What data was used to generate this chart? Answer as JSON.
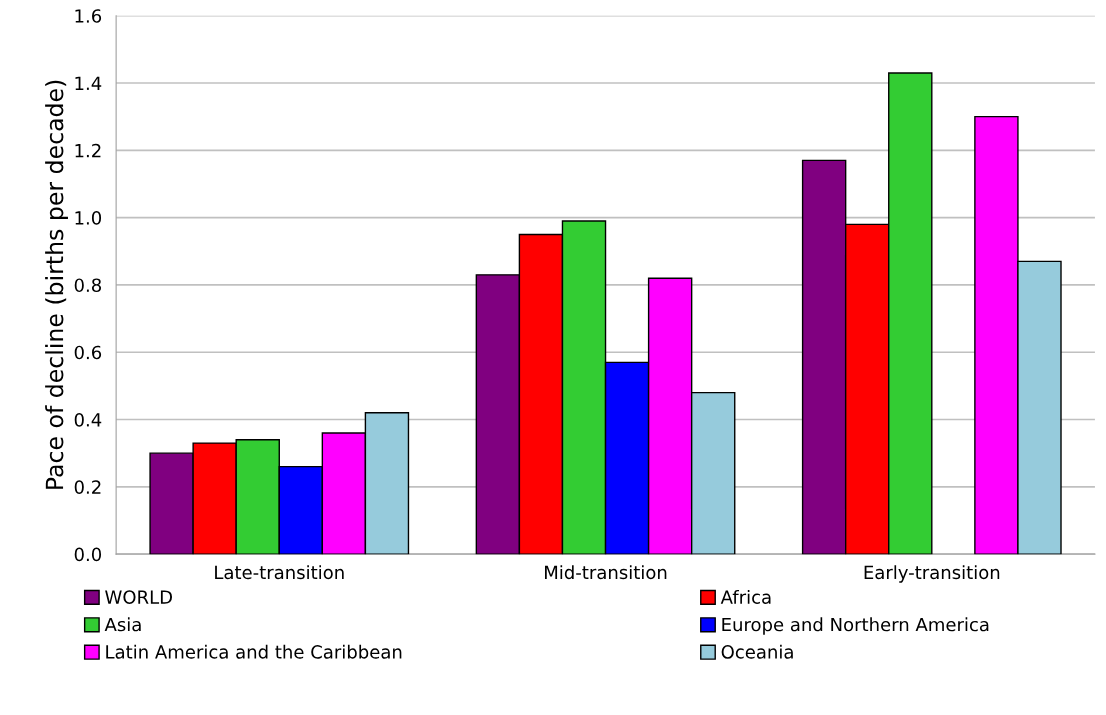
{
  "chart_data": {
    "type": "bar",
    "ylabel": "Pace of decline (births per decade)",
    "categories": [
      "Late-transition",
      "Mid-transition",
      "Early-transition"
    ],
    "series": [
      {
        "name": "WORLD",
        "color": "#800080",
        "values": [
          0.3,
          0.83,
          1.17
        ]
      },
      {
        "name": "Africa",
        "color": "#ff0000",
        "values": [
          0.33,
          0.95,
          0.98
        ]
      },
      {
        "name": "Asia",
        "color": "#33cc33",
        "values": [
          0.34,
          0.99,
          1.43
        ]
      },
      {
        "name": "Europe and Northern America",
        "color": "#0000ff",
        "values": [
          0.26,
          0.57,
          null
        ]
      },
      {
        "name": "Latin America and the Caribbean",
        "color": "#ff00ff",
        "values": [
          0.36,
          0.82,
          1.3
        ]
      },
      {
        "name": "Oceania",
        "color": "#96cbdc",
        "values": [
          0.42,
          0.48,
          0.87
        ]
      }
    ],
    "ylim": [
      0,
      1.6
    ],
    "yticks": [
      {
        "value": 0,
        "label": "0.0"
      },
      {
        "value": 0.2,
        "label": "0.2"
      },
      {
        "value": 0.4,
        "label": "0.4"
      },
      {
        "value": 0.6,
        "label": "0.6"
      },
      {
        "value": 0.8,
        "label": "0.8"
      },
      {
        "value": 1.0,
        "label": "1.0"
      },
      {
        "value": 1.2,
        "label": "1.2"
      },
      {
        "value": 1.4,
        "label": "1.4"
      },
      {
        "value": 1.6,
        "label": "1.6"
      }
    ],
    "grid": "y",
    "legend": "bottom"
  }
}
